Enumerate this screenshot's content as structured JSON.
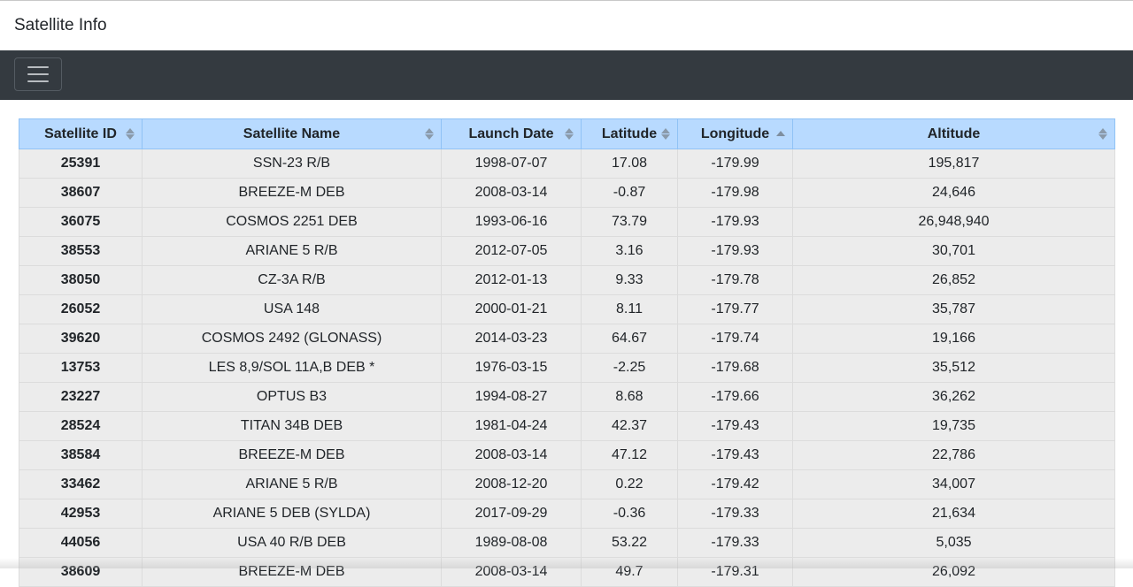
{
  "app": {
    "title": "Satellite Info"
  },
  "navbar": {
    "toggler_icon": "hamburger-menu-icon"
  },
  "table": {
    "columns": [
      {
        "label": "Satellite ID",
        "sort": "none"
      },
      {
        "label": "Satellite Name",
        "sort": "none"
      },
      {
        "label": "Launch Date",
        "sort": "none"
      },
      {
        "label": "Latitude",
        "sort": "none"
      },
      {
        "label": "Longitude",
        "sort": "asc"
      },
      {
        "label": "Altitude",
        "sort": "none"
      }
    ],
    "rows": [
      [
        "25391",
        "SSN-23 R/B",
        "1998-07-07",
        "17.08",
        "-179.99",
        "195,817"
      ],
      [
        "38607",
        "BREEZE-M DEB",
        "2008-03-14",
        "-0.87",
        "-179.98",
        "24,646"
      ],
      [
        "36075",
        "COSMOS 2251 DEB",
        "1993-06-16",
        "73.79",
        "-179.93",
        "26,948,940"
      ],
      [
        "38553",
        "ARIANE 5 R/B",
        "2012-07-05",
        "3.16",
        "-179.93",
        "30,701"
      ],
      [
        "38050",
        "CZ-3A R/B",
        "2012-01-13",
        "9.33",
        "-179.78",
        "26,852"
      ],
      [
        "26052",
        "USA 148",
        "2000-01-21",
        "8.11",
        "-179.77",
        "35,787"
      ],
      [
        "39620",
        "COSMOS 2492 (GLONASS)",
        "2014-03-23",
        "64.67",
        "-179.74",
        "19,166"
      ],
      [
        "13753",
        "LES 8,9/SOL 11A,B DEB *",
        "1976-03-15",
        "-2.25",
        "-179.68",
        "35,512"
      ],
      [
        "23227",
        "OPTUS B3",
        "1994-08-27",
        "8.68",
        "-179.66",
        "36,262"
      ],
      [
        "28524",
        "TITAN 34B DEB",
        "1981-04-24",
        "42.37",
        "-179.43",
        "19,735"
      ],
      [
        "38584",
        "BREEZE-M DEB",
        "2008-03-14",
        "47.12",
        "-179.43",
        "22,786"
      ],
      [
        "33462",
        "ARIANE 5 R/B",
        "2008-12-20",
        "0.22",
        "-179.42",
        "34,007"
      ],
      [
        "42953",
        "ARIANE 5 DEB (SYLDA)",
        "2017-09-29",
        "-0.36",
        "-179.33",
        "21,634"
      ],
      [
        "44056",
        "USA 40 R/B DEB",
        "1989-08-08",
        "53.22",
        "-179.33",
        "5,035"
      ],
      [
        "38609",
        "BREEZE-M DEB",
        "2008-03-14",
        "49.7",
        "-179.31",
        "26,092"
      ]
    ]
  },
  "colors": {
    "navbar_bg": "#343a40",
    "header_bg": "#b8daff",
    "row_bg": "#ececec"
  }
}
